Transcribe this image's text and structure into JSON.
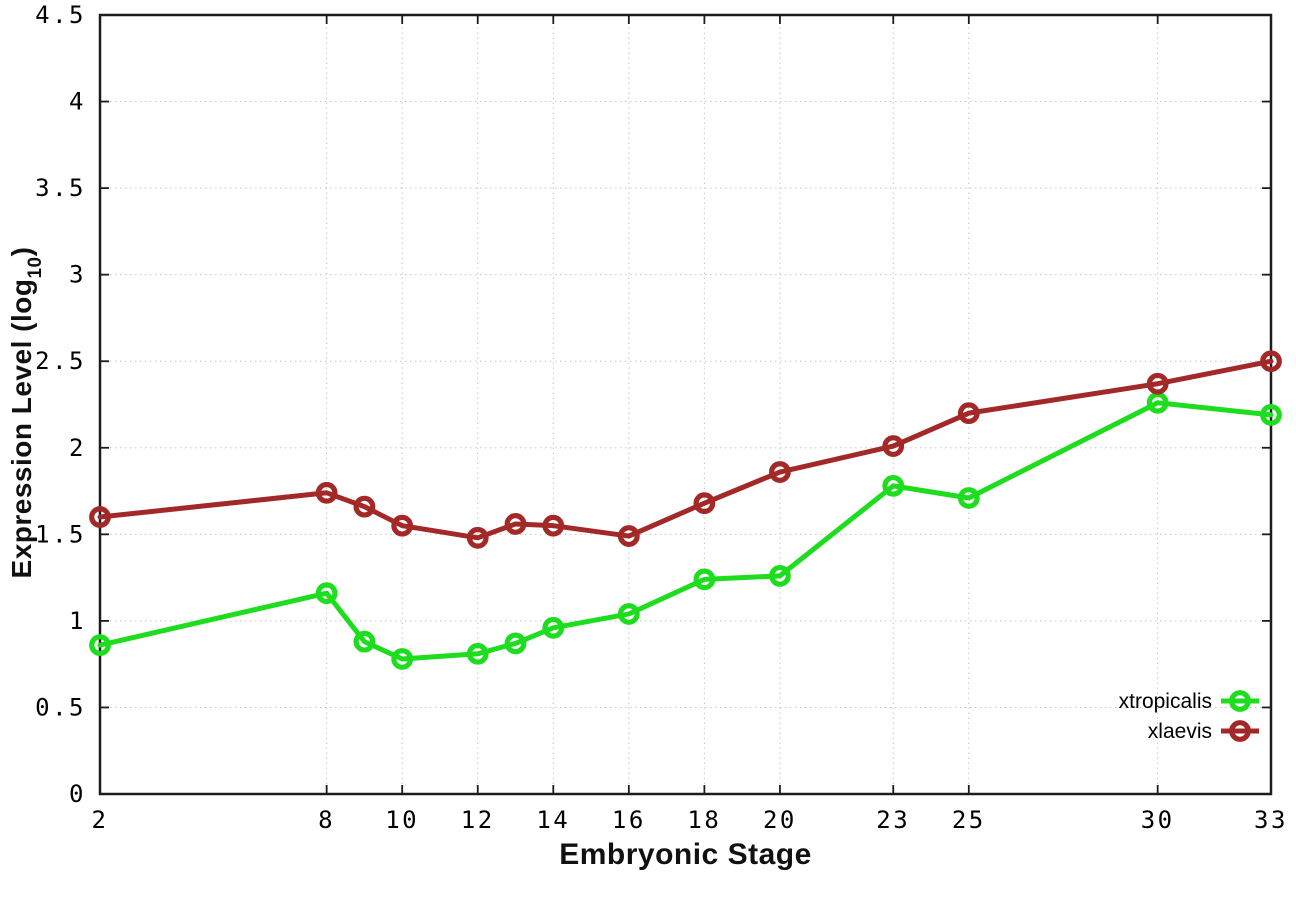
{
  "figure": {
    "background": "#ffffff",
    "border_color": "#1c1c1c",
    "grid_color": "#c6c6c6",
    "text_color": "#000000"
  },
  "chart_data": {
    "type": "line",
    "xlabel": "Embryonic Stage",
    "ylabel_parts": {
      "prefix": "Expression Level (log",
      "subscript": "10",
      "suffix": ")"
    },
    "x": [
      2,
      8,
      9,
      10,
      12,
      13,
      14,
      16,
      18,
      20,
      23,
      25,
      30,
      33
    ],
    "series": [
      {
        "name": "xtropicalis",
        "color": "#1edd1e",
        "values": [
          0.86,
          1.16,
          0.88,
          0.78,
          0.81,
          0.87,
          0.96,
          1.04,
          1.24,
          1.26,
          1.78,
          1.71,
          2.26,
          2.19
        ]
      },
      {
        "name": "xlaevis",
        "color": "#a32929",
        "values": [
          1.6,
          1.74,
          1.66,
          1.55,
          1.48,
          1.56,
          1.55,
          1.49,
          1.68,
          1.86,
          2.01,
          2.2,
          2.37,
          2.5
        ]
      }
    ],
    "xlim": [
      2,
      33
    ],
    "ylim": [
      0,
      4.5
    ],
    "x_ticks": [
      "2",
      "8",
      "10",
      "12",
      "14",
      "16",
      "18",
      "20",
      "23",
      "25",
      "30",
      "33"
    ],
    "y_ticks": [
      "0",
      "0.5",
      "1",
      "1.5",
      "2",
      "2.5",
      "3",
      "3.5",
      "4",
      "4.5"
    ],
    "grid": true,
    "legend_position": "inside-right-lower",
    "marker": "open-circle"
  }
}
